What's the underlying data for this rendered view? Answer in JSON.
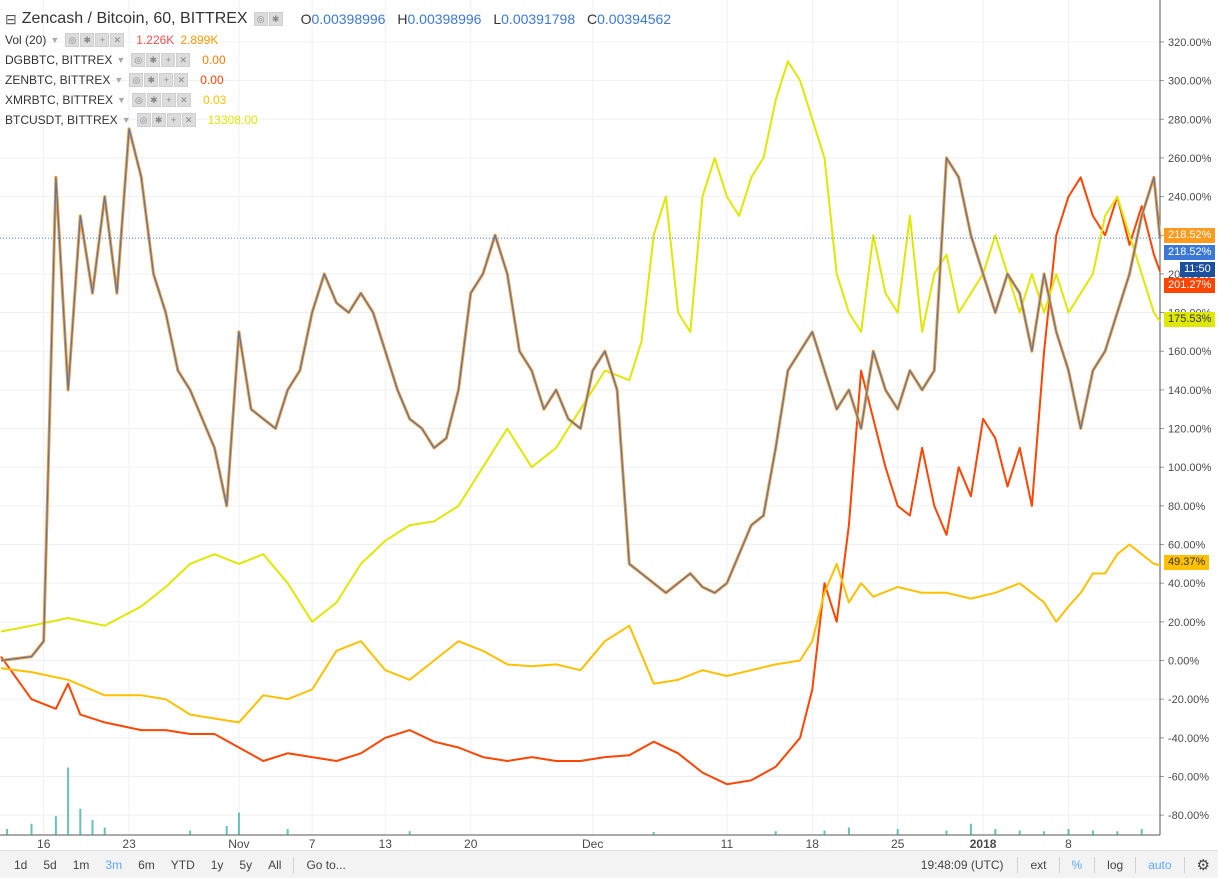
{
  "legend": {
    "title": "Zencash / Bitcoin, 60, BITTREX",
    "open_label": "O",
    "open": "0.00398996",
    "high_label": "H",
    "high": "0.00398996",
    "low_label": "L",
    "low": "0.00391798",
    "close_label": "C",
    "close": "0.00394562",
    "vol_label": "Vol (20)",
    "vol_a": "1.226K",
    "vol_b": "2.899K",
    "compare": [
      {
        "label": "DGBBTC, BITTREX",
        "value": "0.00",
        "color": "#ff7a00"
      },
      {
        "label": "ZENBTC, BITTREX",
        "value": "0.00",
        "color": "#ff4500"
      },
      {
        "label": "XMRBTC, BITTREX",
        "value": "0.03",
        "color": "#ffc000"
      },
      {
        "label": "BTCUSDT, BITTREX",
        "value": "13308.00",
        "color": "#dfe800"
      }
    ]
  },
  "badges": {
    "last_orange": "218.52%",
    "last_blue": "218.52%",
    "time": "11:50",
    "zen_red": "201.27%",
    "btc_lime": "175.53%",
    "xmr_yellow": "49.37%"
  },
  "toolbar": {
    "ranges": [
      "1d",
      "5d",
      "1m",
      "3m",
      "6m",
      "YTD",
      "1y",
      "5y",
      "All"
    ],
    "active": "3m",
    "goto": "Go to...",
    "clock": "19:48:09 (UTC)",
    "ext": "ext",
    "pct": "%",
    "log": "log",
    "auto": "auto"
  },
  "chart_data": {
    "type": "line",
    "yunit": "%",
    "ylim": [
      -88,
      335
    ],
    "yticks": [
      "320.00%",
      "300.00%",
      "280.00%",
      "260.00%",
      "240.00%",
      "220.00%",
      "200.00%",
      "180.00%",
      "160.00%",
      "140.00%",
      "120.00%",
      "100.00%",
      "80.00%",
      "60.00%",
      "40.00%",
      "20.00%",
      "0.00%",
      "-20.00%",
      "-40.00%",
      "-60.00%",
      "-80.00%"
    ],
    "yvalues": [
      320,
      300,
      280,
      260,
      240,
      220,
      200,
      180,
      160,
      140,
      120,
      100,
      80,
      60,
      40,
      20,
      0,
      -20,
      -40,
      -60,
      -80
    ],
    "xticks": [
      "16",
      "23",
      "Nov",
      "7",
      "13",
      "20",
      "Dec",
      "11",
      "18",
      "25",
      "2018",
      "8"
    ],
    "xtick_pos": [
      0,
      7,
      16,
      22,
      28,
      35,
      45,
      56,
      63,
      70,
      77,
      84
    ],
    "xlim": [
      -3.5,
      91.5
    ],
    "last_value": 218.52,
    "series": [
      {
        "color": "#ff4500",
        "width": 2,
        "x": [
          -3.5,
          -1,
          1,
          2,
          3,
          5,
          8,
          10,
          12,
          14,
          16,
          18,
          20,
          22,
          24,
          26,
          28,
          30,
          32,
          34,
          36,
          38,
          40,
          42,
          44,
          46,
          48,
          50,
          52,
          54,
          56,
          58,
          60,
          62,
          63,
          64,
          65,
          66,
          67,
          68,
          69,
          70,
          71,
          72,
          73,
          74,
          75,
          76,
          77,
          78,
          79,
          80,
          81,
          82,
          83,
          84,
          85,
          86,
          87,
          88,
          89,
          90,
          91,
          91.5
        ],
        "y": [
          2,
          -20,
          -25,
          -12,
          -28,
          -32,
          -36,
          -36,
          -38,
          -38,
          -45,
          -52,
          -48,
          -50,
          -52,
          -48,
          -40,
          -36,
          -42,
          -45,
          -50,
          -52,
          -50,
          -52,
          -52,
          -50,
          -49,
          -42,
          -48,
          -58,
          -64,
          -62,
          -55,
          -40,
          -15,
          40,
          20,
          70,
          150,
          125,
          100,
          80,
          75,
          110,
          80,
          65,
          100,
          85,
          125,
          115,
          90,
          110,
          80,
          160,
          220,
          240,
          250,
          230,
          220,
          240,
          215,
          235,
          210,
          201.27
        ]
      },
      {
        "color": "#ffc000",
        "width": 2,
        "x": [
          -3.5,
          -1,
          2,
          5,
          8,
          10,
          12,
          14,
          16,
          18,
          20,
          22,
          24,
          26,
          28,
          30,
          32,
          34,
          36,
          38,
          40,
          42,
          44,
          46,
          48,
          50,
          52,
          54,
          56,
          58,
          60,
          62,
          63,
          64,
          65,
          66,
          67,
          68,
          70,
          72,
          74,
          76,
          78,
          80,
          81,
          82,
          83,
          84,
          85,
          86,
          87,
          88,
          89,
          90,
          91,
          91.5
        ],
        "y": [
          -4,
          -6,
          -10,
          -18,
          -18,
          -20,
          -28,
          -30,
          -32,
          -18,
          -20,
          -15,
          5,
          10,
          -5,
          -10,
          0,
          10,
          5,
          -2,
          -3,
          -2,
          -5,
          10,
          18,
          -12,
          -10,
          -5,
          -8,
          -5,
          -2,
          0,
          10,
          35,
          50,
          30,
          40,
          33,
          38,
          35,
          35,
          32,
          35,
          40,
          35,
          30,
          20,
          28,
          35,
          45,
          45,
          55,
          60,
          55,
          50,
          49.37
        ]
      },
      {
        "color": "#dfe800",
        "width": 2,
        "x": [
          -3.5,
          -1,
          2,
          5,
          8,
          10,
          12,
          14,
          16,
          18,
          20,
          22,
          24,
          26,
          28,
          30,
          32,
          34,
          36,
          38,
          40,
          42,
          44,
          46,
          48,
          49,
          50,
          51,
          52,
          53,
          54,
          55,
          56,
          57,
          58,
          59,
          60,
          61,
          62,
          63,
          64,
          65,
          66,
          67,
          68,
          69,
          70,
          71,
          72,
          73,
          74,
          75,
          76,
          77,
          78,
          79,
          80,
          81,
          82,
          83,
          84,
          85,
          86,
          87,
          88,
          89,
          90,
          91,
          91.5
        ],
        "y": [
          15,
          18,
          22,
          18,
          28,
          38,
          50,
          55,
          50,
          55,
          40,
          20,
          30,
          50,
          62,
          70,
          72,
          80,
          100,
          120,
          100,
          110,
          130,
          150,
          145,
          165,
          220,
          240,
          180,
          170,
          240,
          260,
          240,
          230,
          250,
          260,
          290,
          310,
          300,
          280,
          260,
          200,
          180,
          170,
          220,
          190,
          180,
          230,
          170,
          200,
          210,
          180,
          190,
          200,
          220,
          200,
          180,
          200,
          180,
          200,
          180,
          190,
          200,
          230,
          240,
          220,
          200,
          180,
          175.53
        ]
      },
      {
        "color": "#ff9a1f",
        "width": 3,
        "x": [
          -3.5,
          -1,
          0,
          1,
          2,
          3,
          4,
          5,
          6,
          7,
          8,
          9,
          10,
          11,
          12,
          13,
          14,
          15,
          16,
          17,
          18,
          19,
          20,
          21,
          22,
          23,
          24,
          25,
          26,
          27,
          28,
          29,
          30,
          31,
          32,
          33,
          34,
          35,
          36,
          37,
          38,
          39,
          40,
          41,
          42,
          43,
          44,
          45,
          46,
          47,
          48,
          49,
          50,
          51,
          52,
          53,
          54,
          55,
          56,
          57,
          58,
          59,
          60,
          61,
          62,
          63,
          64,
          65,
          66,
          67,
          68,
          69,
          70,
          71,
          72,
          73,
          74,
          75,
          76,
          77,
          78,
          79,
          80,
          81,
          82,
          83,
          84,
          85,
          86,
          87,
          88,
          89,
          90,
          91,
          91.5
        ],
        "y": [
          0,
          2,
          10,
          250,
          140,
          230,
          190,
          240,
          190,
          275,
          250,
          200,
          180,
          150,
          140,
          125,
          110,
          80,
          170,
          130,
          125,
          120,
          140,
          150,
          180,
          200,
          185,
          180,
          190,
          180,
          160,
          140,
          125,
          120,
          110,
          115,
          140,
          190,
          200,
          220,
          200,
          160,
          150,
          130,
          140,
          125,
          120,
          150,
          160,
          140,
          50,
          45,
          40,
          35,
          40,
          45,
          38,
          35,
          40,
          55,
          70,
          75,
          110,
          150,
          160,
          170,
          150,
          130,
          140,
          120,
          160,
          140,
          130,
          150,
          140,
          150,
          260,
          250,
          220,
          200,
          180,
          200,
          190,
          160,
          200,
          170,
          150,
          120,
          150,
          160,
          180,
          200,
          230,
          250,
          218.52
        ]
      },
      {
        "color": "#4a78c8",
        "width": 1.2,
        "x": [
          -3.5,
          -1,
          0,
          1,
          2,
          3,
          4,
          5,
          6,
          7,
          8,
          9,
          10,
          11,
          12,
          13,
          14,
          15,
          16,
          17,
          18,
          19,
          20,
          21,
          22,
          23,
          24,
          25,
          26,
          27,
          28,
          29,
          30,
          31,
          32,
          33,
          34,
          35,
          36,
          37,
          38,
          39,
          40,
          41,
          42,
          43,
          44,
          45,
          46,
          47,
          48,
          49,
          50,
          51,
          52,
          53,
          54,
          55,
          56,
          57,
          58,
          59,
          60,
          61,
          62,
          63,
          64,
          65,
          66,
          67,
          68,
          69,
          70,
          71,
          72,
          73,
          74,
          75,
          76,
          77,
          78,
          79,
          80,
          81,
          82,
          83,
          84,
          85,
          86,
          87,
          88,
          89,
          90,
          91,
          91.5
        ],
        "y": [
          0,
          2,
          10,
          250,
          140,
          230,
          190,
          240,
          190,
          275,
          250,
          200,
          180,
          150,
          140,
          125,
          110,
          80,
          170,
          130,
          125,
          120,
          140,
          150,
          180,
          200,
          185,
          180,
          190,
          180,
          160,
          140,
          125,
          120,
          110,
          115,
          140,
          190,
          200,
          220,
          200,
          160,
          150,
          130,
          140,
          125,
          120,
          150,
          160,
          140,
          50,
          45,
          40,
          35,
          40,
          45,
          38,
          35,
          40,
          55,
          70,
          75,
          110,
          150,
          160,
          170,
          150,
          130,
          140,
          120,
          160,
          140,
          130,
          150,
          140,
          150,
          260,
          250,
          220,
          200,
          180,
          200,
          190,
          160,
          200,
          170,
          150,
          120,
          150,
          160,
          180,
          200,
          230,
          250,
          218.52
        ]
      }
    ],
    "volume": {
      "color": "#26a69a",
      "x": [
        -3,
        -1,
        1,
        2,
        3,
        4,
        5,
        12,
        15,
        16,
        20,
        30,
        50,
        60,
        64,
        66,
        70,
        74,
        76,
        78,
        80,
        82,
        84,
        86,
        88,
        90
      ],
      "v": [
        0.08,
        0.15,
        0.25,
        0.9,
        0.35,
        0.2,
        0.1,
        0.06,
        0.12,
        0.3,
        0.08,
        0.05,
        0.04,
        0.05,
        0.06,
        0.1,
        0.08,
        0.06,
        0.15,
        0.08,
        0.06,
        0.05,
        0.08,
        0.06,
        0.05,
        0.08
      ]
    }
  }
}
